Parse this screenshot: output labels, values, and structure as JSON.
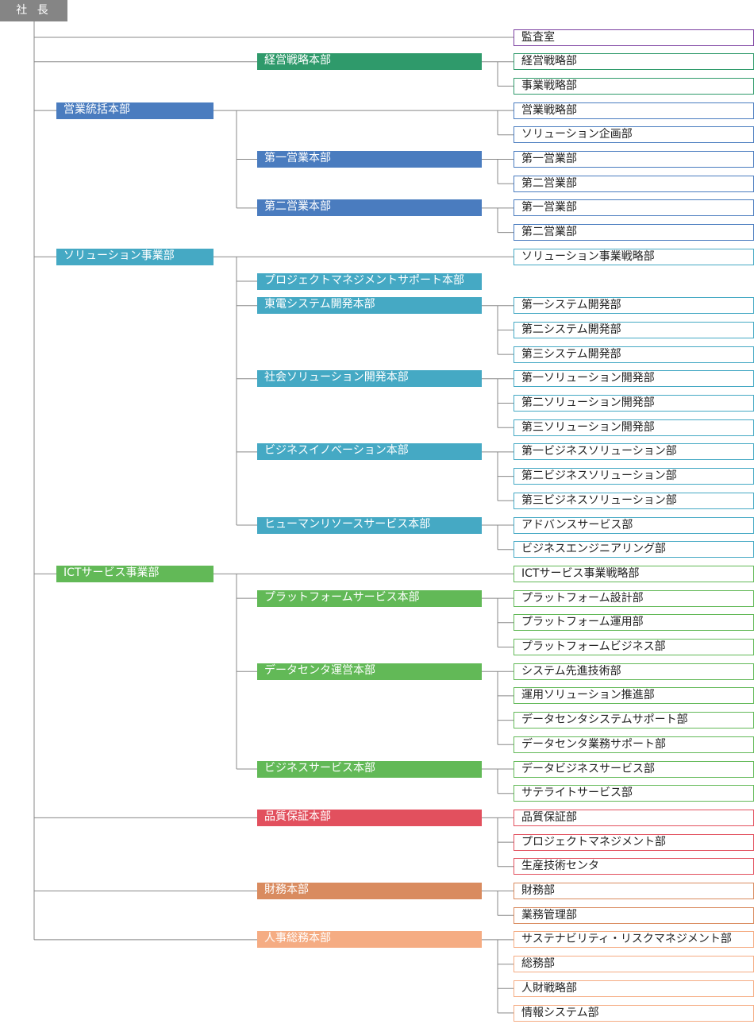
{
  "colors": {
    "gray": "#858585",
    "purple": "#7b3fa0",
    "green": "#2f9a6b",
    "blue": "#4a7cbf",
    "teal": "#45a9c4",
    "lightgreen": "#62b957",
    "red": "#e2505e",
    "brown": "#d98b5f",
    "salmon": "#f5ac83",
    "line": "#888888"
  },
  "org": {
    "root": {
      "label": "社 長",
      "color": "gray"
    },
    "direct": [
      {
        "label": "監査室",
        "color": "purple"
      }
    ],
    "l1": [
      {
        "label": null,
        "color": "green",
        "hq": [
          {
            "label": "経営戦略本部",
            "depts": [
              "経営戦略部",
              "事業戦略部"
            ]
          }
        ]
      },
      {
        "label": "営業統括本部",
        "color": "blue",
        "depts": [
          "営業戦略部",
          "ソリューション企画部"
        ],
        "hq": [
          {
            "label": "第一営業本部",
            "depts": [
              "第一営業部",
              "第二営業部"
            ]
          },
          {
            "label": "第二営業本部",
            "depts": [
              "第一営業部",
              "第二営業部"
            ]
          }
        ]
      },
      {
        "label": "ソリューション事業部",
        "color": "teal",
        "depts": [
          "ソリューション事業戦略部"
        ],
        "hq": [
          {
            "label": "プロジェクトマネジメントサポート本部",
            "depts": []
          },
          {
            "label": "東電システム開発本部",
            "depts": [
              "第一システム開発部",
              "第二システム開発部",
              "第三システム開発部"
            ]
          },
          {
            "label": "社会ソリューション開発本部",
            "depts": [
              "第一ソリューション開発部",
              "第二ソリューション開発部",
              "第三ソリューション開発部"
            ]
          },
          {
            "label": "ビジネスイノベーション本部",
            "depts": [
              "第一ビジネスソリューション部",
              "第二ビジネスソリューション部",
              "第三ビジネスソリューション部"
            ]
          },
          {
            "label": "ヒューマンリソースサービス本部",
            "depts": [
              "アドバンスサービス部",
              "ビジネスエンジニアリング部"
            ]
          }
        ]
      },
      {
        "label": "ICTサービス事業部",
        "color": "lightgreen",
        "depts": [
          "ICTサービス事業戦略部"
        ],
        "hq": [
          {
            "label": "プラットフォームサービス本部",
            "depts": [
              "プラットフォーム設計部",
              "プラットフォーム運用部",
              "プラットフォームビジネス部"
            ]
          },
          {
            "label": "データセンタ運営本部",
            "depts": [
              "システム先進技術部",
              "運用ソリューション推進部",
              "データセンタシステムサポート部",
              "データセンタ業務サポート部"
            ]
          },
          {
            "label": "ビジネスサービス本部",
            "depts": [
              "データビジネスサービス部",
              "サテライトサービス部"
            ]
          }
        ]
      },
      {
        "label": null,
        "color": "red",
        "hq": [
          {
            "label": "品質保証本部",
            "depts": [
              "品質保証部",
              "プロジェクトマネジメント部",
              "生産技術センタ"
            ]
          }
        ]
      },
      {
        "label": null,
        "color": "brown",
        "hq": [
          {
            "label": "財務本部",
            "depts": [
              "財務部",
              "業務管理部"
            ]
          }
        ]
      },
      {
        "label": null,
        "color": "salmon",
        "hq": [
          {
            "label": "人事総務本部",
            "depts": [
              "サステナビリティ・リスクマネジメント部",
              "総務部",
              "人財戦略部",
              "情報システム部"
            ]
          }
        ]
      }
    ]
  }
}
